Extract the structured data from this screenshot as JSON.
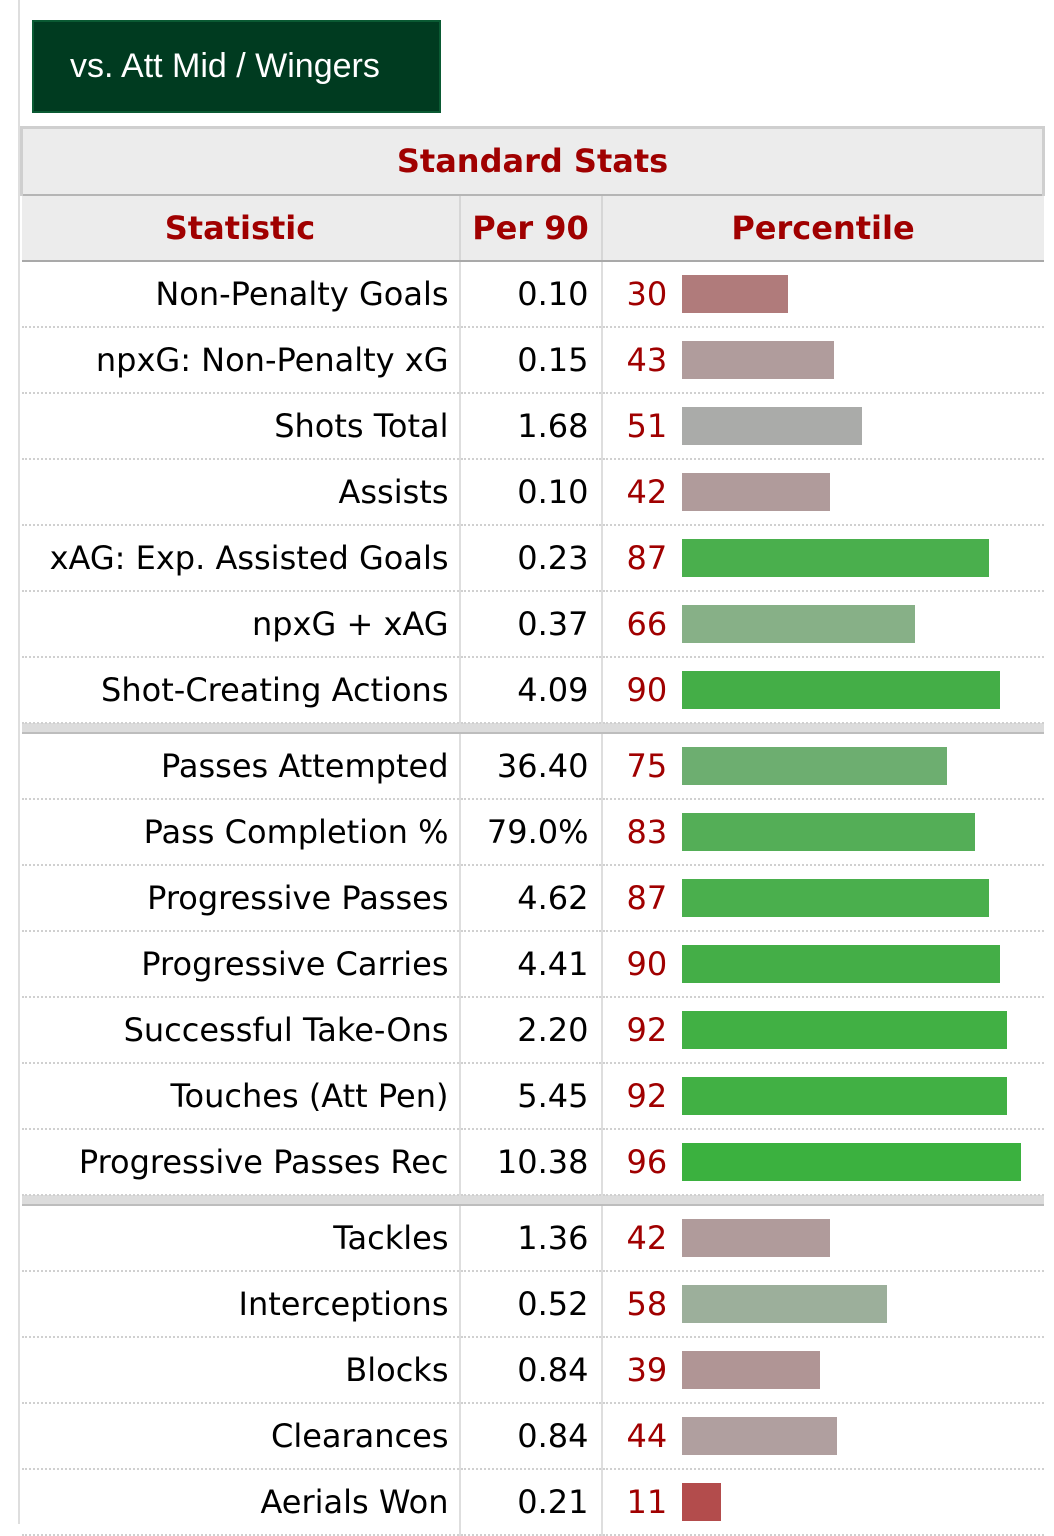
{
  "tab": {
    "label": "vs. Att Mid / Wingers"
  },
  "table": {
    "caption": "Standard Stats",
    "headers": {
      "statistic": "Statistic",
      "per90": "Per 90",
      "percentile": "Percentile"
    }
  },
  "chart_data": {
    "type": "table",
    "title": "Standard Stats",
    "columns": [
      "Statistic",
      "Per 90",
      "Percentile"
    ],
    "percentile_range": [
      0,
      100
    ],
    "colors": {
      "high": "#3bb13b",
      "mid": "#aaaaaa",
      "low": "#b34a4a"
    },
    "groups": [
      {
        "rows": [
          {
            "statistic": "Non-Penalty Goals",
            "per90": "0.10",
            "percentile": 30,
            "color": "#b07b7b"
          },
          {
            "statistic": "npxG: Non-Penalty xG",
            "per90": "0.15",
            "percentile": 43,
            "color": "#b09c9c"
          },
          {
            "statistic": "Shots Total",
            "per90": "1.68",
            "percentile": 51,
            "color": "#aaaba9"
          },
          {
            "statistic": "Assists",
            "per90": "0.10",
            "percentile": 42,
            "color": "#b09b9b"
          },
          {
            "statistic": "xAG: Exp. Assisted Goals",
            "per90": "0.23",
            "percentile": 87,
            "color": "#4aaf4d"
          },
          {
            "statistic": "npxG + xAG",
            "per90": "0.37",
            "percentile": 66,
            "color": "#87b087"
          },
          {
            "statistic": "Shot-Creating Actions",
            "per90": "4.09",
            "percentile": 90,
            "color": "#44ae47"
          }
        ]
      },
      {
        "rows": [
          {
            "statistic": "Passes Attempted",
            "per90": "36.40",
            "percentile": 75,
            "color": "#6dae70"
          },
          {
            "statistic": "Pass Completion %",
            "per90": "79.0%",
            "percentile": 83,
            "color": "#54ae57"
          },
          {
            "statistic": "Progressive Passes",
            "per90": "4.62",
            "percentile": 87,
            "color": "#4aaf4d"
          },
          {
            "statistic": "Progressive Carries",
            "per90": "4.41",
            "percentile": 90,
            "color": "#44ae47"
          },
          {
            "statistic": "Successful Take-Ons",
            "per90": "2.20",
            "percentile": 92,
            "color": "#41b044"
          },
          {
            "statistic": "Touches (Att Pen)",
            "per90": "5.45",
            "percentile": 92,
            "color": "#41b044"
          },
          {
            "statistic": "Progressive Passes Rec",
            "per90": "10.38",
            "percentile": 96,
            "color": "#3bb13f"
          }
        ]
      },
      {
        "rows": [
          {
            "statistic": "Tackles",
            "per90": "1.36",
            "percentile": 42,
            "color": "#b09b9b"
          },
          {
            "statistic": "Interceptions",
            "per90": "0.52",
            "percentile": 58,
            "color": "#9caf9b"
          },
          {
            "statistic": "Blocks",
            "per90": "0.84",
            "percentile": 39,
            "color": "#b09595"
          },
          {
            "statistic": "Clearances",
            "per90": "0.84",
            "percentile": 44,
            "color": "#b09f9f"
          },
          {
            "statistic": "Aerials Won",
            "per90": "0.21",
            "percentile": 11,
            "color": "#b34c4c"
          }
        ]
      }
    ]
  }
}
